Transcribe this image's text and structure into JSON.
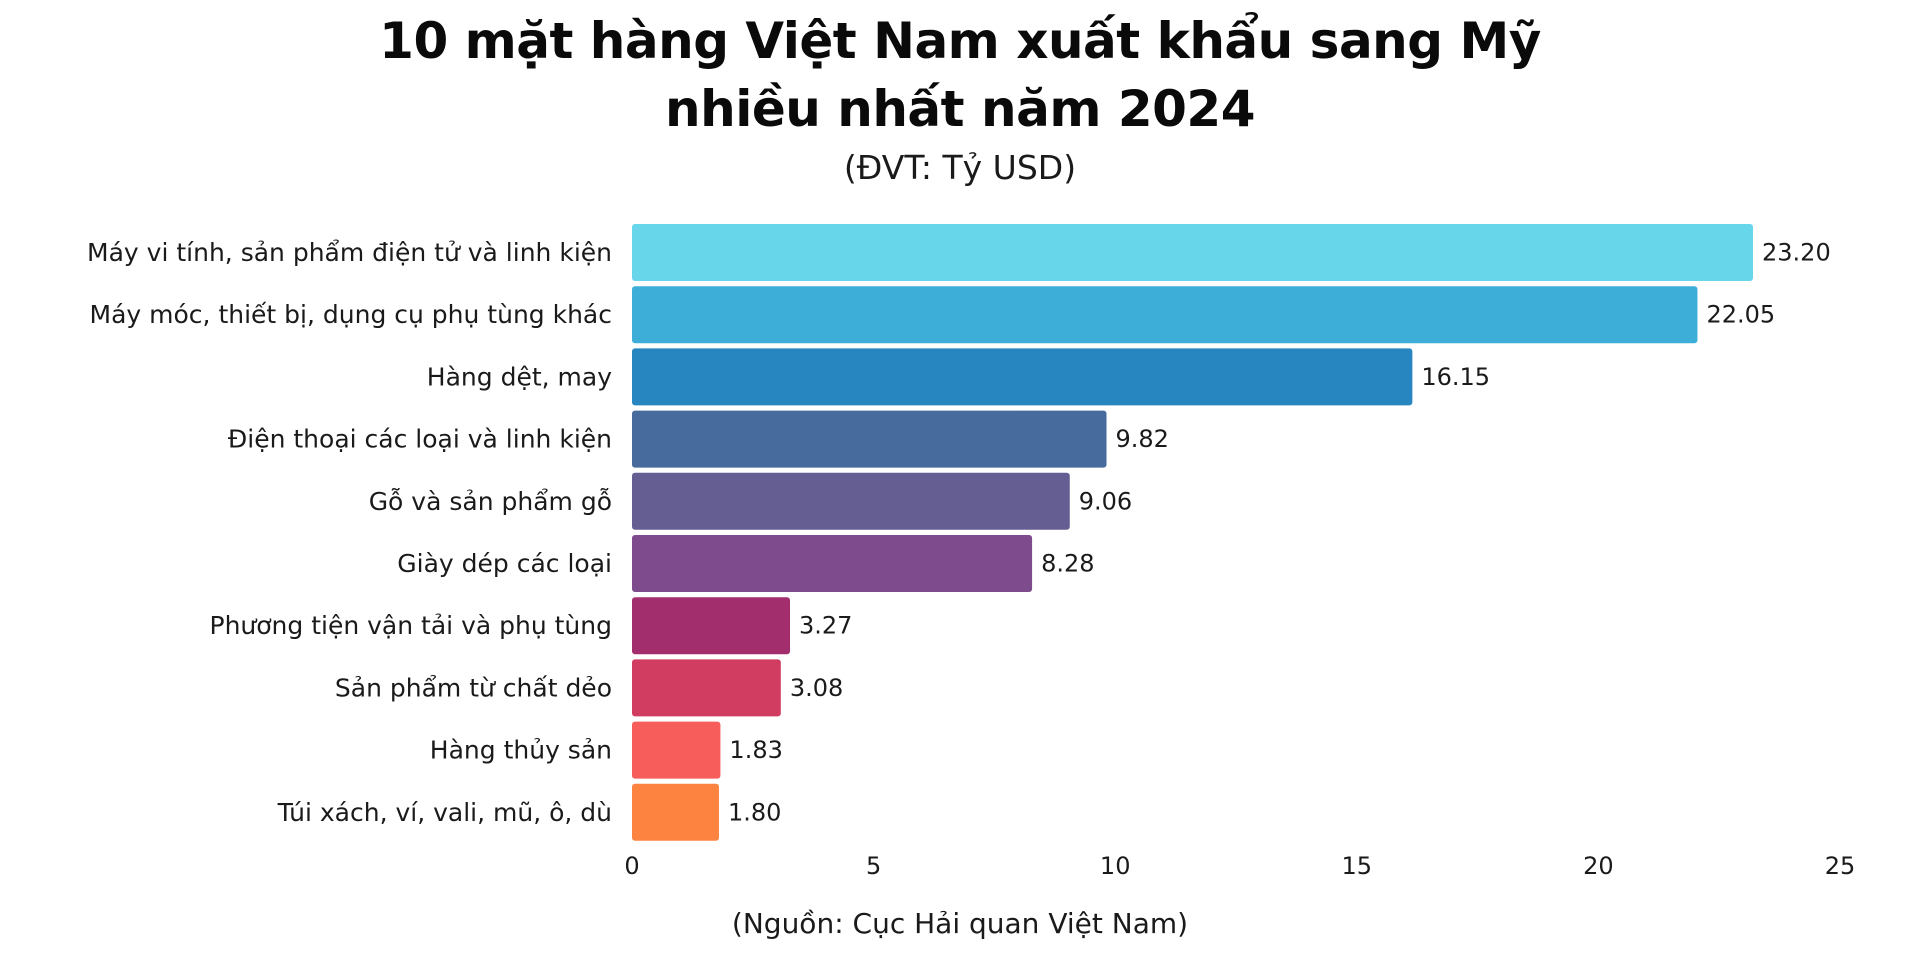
{
  "header": {
    "title_line1": "10 mặt hàng Việt Nam xuất khẩu sang Mỹ",
    "title_line2": "nhiều nhất năm 2024",
    "subtitle": "(ĐVT: Tỷ USD)"
  },
  "footer": {
    "source": "(Nguồn: Cục Hải quan Việt Nam)"
  },
  "chart_data": {
    "type": "bar",
    "orientation": "horizontal",
    "title": "10 mặt hàng Việt Nam xuất khẩu sang Mỹ nhiều nhất năm 2024",
    "subtitle": "(ĐVT: Tỷ USD)",
    "xlabel": "",
    "ylabel": "",
    "xlim": [
      0,
      25
    ],
    "x_ticks": [
      0,
      5,
      10,
      15,
      20,
      25
    ],
    "grid": false,
    "legend": "none",
    "categories": [
      "Máy vi tính, sản phẩm điện tử và linh kiện",
      "Máy móc, thiết bị, dụng cụ phụ tùng khác",
      "Hàng dệt, may",
      "Điện thoại các loại và linh kiện",
      "Gỗ và sản phẩm gỗ",
      "Giày dép các loại",
      "Phương tiện vận tải và phụ tùng",
      "Sản phẩm từ chất dẻo",
      "Hàng thủy sản",
      "Túi xách, ví, vali, mũ, ô, dù"
    ],
    "values": [
      23.2,
      22.05,
      16.15,
      9.82,
      9.06,
      8.28,
      3.27,
      3.08,
      1.83,
      1.8
    ],
    "value_labels": [
      "23.20",
      "22.05",
      "16.15",
      "9.82",
      "9.06",
      "8.28",
      "3.27",
      "3.08",
      "1.83",
      "1.80"
    ],
    "colors": [
      "#67d6ea",
      "#3caed8",
      "#2786c0",
      "#476b9c",
      "#655e92",
      "#7e4b8c",
      "#a32e6d",
      "#d13d60",
      "#f75d5b",
      "#fd8341"
    ]
  }
}
